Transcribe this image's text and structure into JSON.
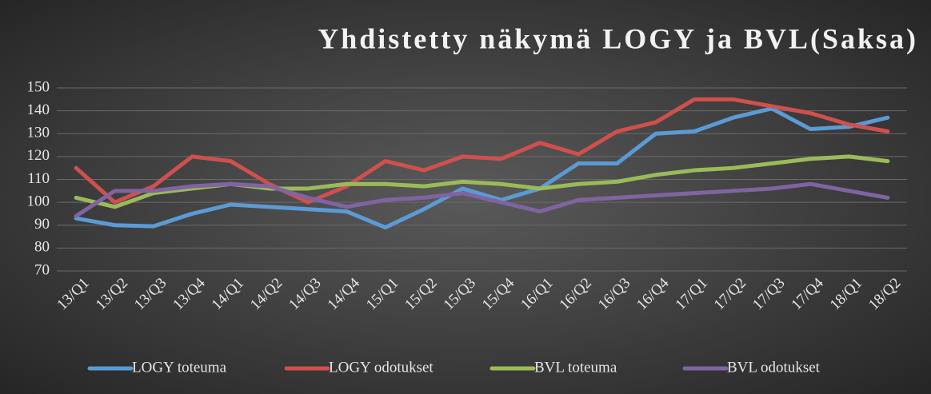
{
  "chart_data": {
    "type": "line",
    "title": "Yhdistetty näkymä LOGY ja BVL(Saksa)",
    "categories": [
      "13/Q1",
      "13/Q2",
      "13/Q3",
      "13/Q4",
      "14/Q1",
      "14/Q2",
      "14/Q3",
      "14/Q4",
      "15/Q1",
      "15/Q2",
      "15/Q3",
      "15/Q4",
      "16/Q1",
      "16/Q2",
      "16/Q3",
      "16/Q4",
      "17/Q1",
      "17/Q2",
      "17/Q3",
      "17/Q4",
      "18/Q1",
      "18/Q2"
    ],
    "series": [
      {
        "name": "LOGY toteuma",
        "color": "#5b9bd5",
        "values": [
          93,
          90,
          89.5,
          95,
          99,
          98,
          97,
          96,
          89,
          97,
          106,
          101,
          106,
          117,
          117,
          130,
          131,
          137,
          141,
          132,
          133,
          137
        ]
      },
      {
        "name": "LOGY odotukset",
        "color": "#d0504d",
        "values": [
          115,
          100,
          107,
          120,
          118,
          108,
          100,
          107,
          118,
          114,
          120,
          119,
          126,
          121,
          131,
          135,
          145,
          145,
          142,
          139,
          134,
          131
        ]
      },
      {
        "name": "BVL toteuma",
        "color": "#9bbb59",
        "values": [
          102,
          98,
          104,
          106,
          108,
          106,
          106,
          108,
          108,
          107,
          109,
          108,
          106,
          108,
          109,
          112,
          114,
          115,
          117,
          119,
          120,
          118
        ]
      },
      {
        "name": "BVL odotukset",
        "color": "#8064a2",
        "values": [
          94,
          105,
          105,
          107,
          108,
          107,
          102,
          98,
          101,
          102,
          104,
          100,
          96,
          101,
          102,
          103,
          104,
          105,
          106,
          108,
          105,
          102
        ]
      }
    ],
    "ylim": [
      70,
      150
    ],
    "yticks": [
      70,
      80,
      90,
      100,
      110,
      120,
      130,
      140,
      150
    ],
    "grid": true
  }
}
